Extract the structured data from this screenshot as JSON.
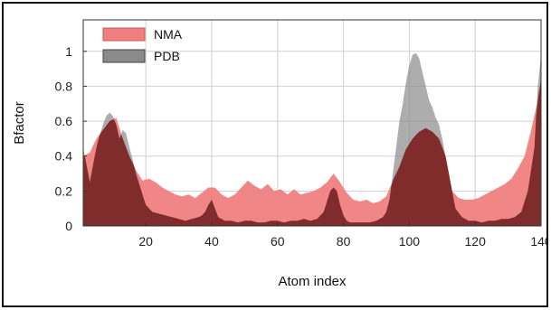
{
  "chart_data": {
    "type": "area",
    "title": "",
    "xlabel": "Atom index",
    "ylabel": "Bfactor",
    "xlim": [
      1,
      140
    ],
    "ylim": [
      0,
      1.18
    ],
    "x_ticks": [
      20,
      40,
      60,
      80,
      100,
      120,
      140
    ],
    "y_ticks": [
      0,
      0.2,
      0.4,
      0.6,
      0.8,
      1
    ],
    "x_tick_labels": [
      "20",
      "40",
      "60",
      "80",
      "100",
      "120",
      "140"
    ],
    "y_tick_labels": [
      "0",
      "0.2",
      "0.4",
      "0.6",
      "0.8",
      "1"
    ],
    "grid": true,
    "legend_position": "top-left",
    "series": [
      {
        "name": "NMA",
        "color": "#f08080",
        "x": [
          1,
          3,
          5,
          7,
          9,
          11,
          13,
          15,
          17,
          19,
          21,
          23,
          25,
          27,
          29,
          31,
          33,
          35,
          37,
          39,
          41,
          43,
          45,
          47,
          49,
          51,
          53,
          55,
          57,
          59,
          61,
          63,
          65,
          67,
          69,
          71,
          73,
          75,
          77,
          79,
          81,
          83,
          85,
          87,
          89,
          91,
          93,
          95,
          97,
          99,
          101,
          103,
          105,
          107,
          109,
          111,
          113,
          115,
          117,
          119,
          121,
          123,
          125,
          127,
          129,
          131,
          133,
          135,
          137,
          139,
          140
        ],
        "y": [
          0.4,
          0.42,
          0.5,
          0.55,
          0.6,
          0.62,
          0.5,
          0.4,
          0.32,
          0.26,
          0.27,
          0.25,
          0.22,
          0.2,
          0.18,
          0.17,
          0.18,
          0.16,
          0.19,
          0.22,
          0.22,
          0.18,
          0.16,
          0.18,
          0.22,
          0.26,
          0.23,
          0.21,
          0.24,
          0.2,
          0.21,
          0.18,
          0.21,
          0.18,
          0.19,
          0.2,
          0.22,
          0.25,
          0.3,
          0.25,
          0.19,
          0.15,
          0.14,
          0.15,
          0.13,
          0.14,
          0.17,
          0.26,
          0.34,
          0.44,
          0.5,
          0.54,
          0.56,
          0.54,
          0.5,
          0.4,
          0.2,
          0.16,
          0.15,
          0.15,
          0.16,
          0.18,
          0.2,
          0.22,
          0.24,
          0.27,
          0.33,
          0.4,
          0.55,
          0.72,
          0.84
        ]
      },
      {
        "name": "PDB",
        "color": "#8a8a8a",
        "x": [
          1,
          2,
          3,
          4,
          5,
          6,
          7,
          8,
          9,
          10,
          11,
          12,
          13,
          14,
          15,
          16,
          17,
          18,
          19,
          20,
          22,
          24,
          26,
          28,
          30,
          32,
          34,
          36,
          37,
          38,
          39,
          40,
          41,
          42,
          43,
          44,
          46,
          48,
          50,
          52,
          54,
          56,
          58,
          60,
          62,
          64,
          66,
          68,
          70,
          72,
          74,
          75,
          76,
          77,
          78,
          79,
          80,
          81,
          82,
          84,
          86,
          88,
          90,
          92,
          93,
          94,
          95,
          96,
          97,
          98,
          99,
          100,
          101,
          102,
          103,
          104,
          105,
          106,
          107,
          108,
          109,
          110,
          111,
          112,
          113,
          114,
          116,
          118,
          120,
          122,
          124,
          126,
          128,
          130,
          132,
          134,
          136,
          138,
          139,
          140
        ],
        "y": [
          0.45,
          0.35,
          0.25,
          0.35,
          0.45,
          0.52,
          0.58,
          0.63,
          0.65,
          0.63,
          0.58,
          0.5,
          0.55,
          0.53,
          0.45,
          0.38,
          0.3,
          0.24,
          0.18,
          0.12,
          0.08,
          0.07,
          0.06,
          0.05,
          0.04,
          0.03,
          0.04,
          0.05,
          0.06,
          0.08,
          0.12,
          0.15,
          0.1,
          0.05,
          0.04,
          0.03,
          0.03,
          0.02,
          0.03,
          0.03,
          0.02,
          0.02,
          0.03,
          0.03,
          0.02,
          0.03,
          0.03,
          0.04,
          0.03,
          0.04,
          0.08,
          0.14,
          0.2,
          0.22,
          0.2,
          0.12,
          0.06,
          0.03,
          0.02,
          0.02,
          0.02,
          0.02,
          0.03,
          0.05,
          0.08,
          0.15,
          0.3,
          0.45,
          0.6,
          0.7,
          0.82,
          0.92,
          0.98,
          0.99,
          0.96,
          0.88,
          0.8,
          0.72,
          0.68,
          0.62,
          0.58,
          0.5,
          0.4,
          0.3,
          0.2,
          0.1,
          0.05,
          0.03,
          0.03,
          0.02,
          0.03,
          0.03,
          0.04,
          0.04,
          0.05,
          0.08,
          0.2,
          0.45,
          0.8,
          0.98
        ]
      }
    ]
  }
}
